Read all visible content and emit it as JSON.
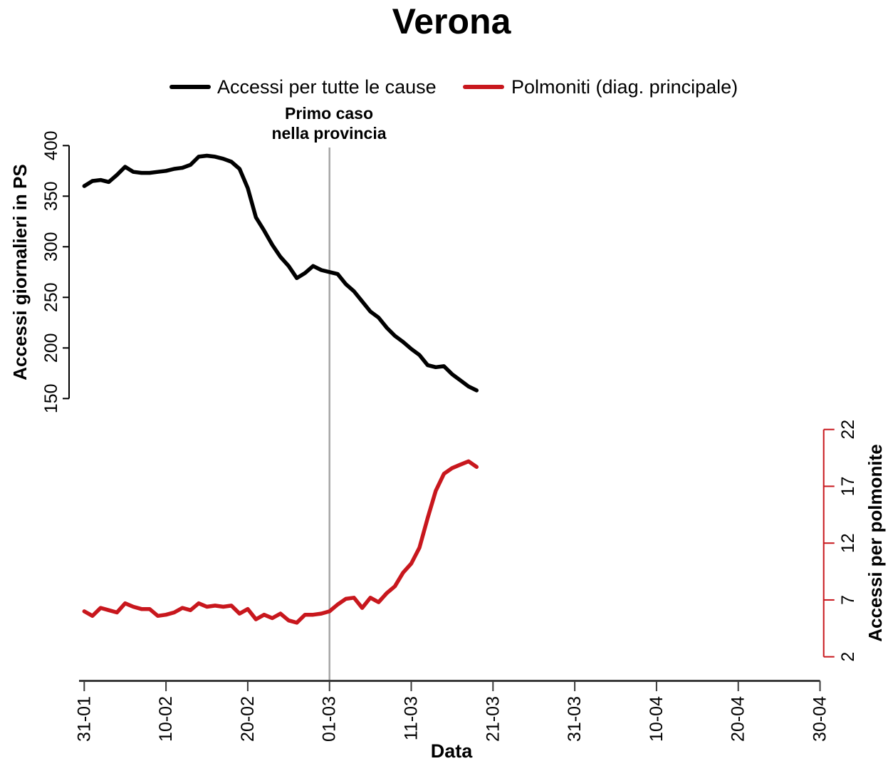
{
  "page": {
    "title": "Verona"
  },
  "colors": {
    "black": "#000000",
    "red": "#C8171D",
    "gray": "#A6A6A6",
    "axis_dark": "#3a3a3a",
    "tick_text": "#111111"
  },
  "legend": {
    "items": [
      {
        "label": "Accessi per tutte le cause"
      },
      {
        "label": "Polmoniti (diag. principale)"
      }
    ]
  },
  "annotation": {
    "lines": [
      "Primo caso",
      "nella provincia"
    ],
    "date": "01-03"
  },
  "chart_data": {
    "type": "line",
    "title": "Verona",
    "xlabel": "Data",
    "ylabel_left": "Accessi giornalieri in PS",
    "ylabel_right": "Accessi per polmonite",
    "grid": false,
    "legend_position": "top-center",
    "ylim_left": [
      150,
      400
    ],
    "ylim_right": [
      2,
      22
    ],
    "y_left_ticks": [
      150,
      200,
      250,
      300,
      350,
      400
    ],
    "y_right_ticks": [
      2,
      7,
      12,
      17,
      22
    ],
    "x_ticks": [
      {
        "label": "31-01",
        "day": 0
      },
      {
        "label": "10-02",
        "day": 10
      },
      {
        "label": "20-02",
        "day": 20
      },
      {
        "label": "01-03",
        "day": 30
      },
      {
        "label": "11-03",
        "day": 40
      },
      {
        "label": "21-03",
        "day": 50
      },
      {
        "label": "31-03",
        "day": 60
      },
      {
        "label": "10-04",
        "day": 70
      },
      {
        "label": "20-04",
        "day": 80
      },
      {
        "label": "30-04",
        "day": 90
      }
    ],
    "xlim_days": [
      0,
      90
    ],
    "annotation_day": 30,
    "x_dates": [
      "31-01",
      "01-02",
      "02-02",
      "03-02",
      "04-02",
      "05-02",
      "06-02",
      "07-02",
      "08-02",
      "09-02",
      "10-02",
      "11-02",
      "12-02",
      "13-02",
      "14-02",
      "15-02",
      "16-02",
      "17-02",
      "18-02",
      "19-02",
      "20-02",
      "21-02",
      "22-02",
      "23-02",
      "24-02",
      "25-02",
      "26-02",
      "27-02",
      "28-02",
      "29-02",
      "01-03",
      "02-03",
      "03-03",
      "04-03",
      "05-03",
      "06-03",
      "07-03",
      "08-03",
      "09-03",
      "10-03",
      "11-03",
      "12-03",
      "13-03",
      "14-03",
      "15-03",
      "16-03",
      "17-03",
      "18-03",
      "19-03"
    ],
    "series": [
      {
        "name": "Accessi per tutte le cause",
        "axis": "left",
        "color": "#000000",
        "values": [
          360,
          365,
          366,
          364,
          371,
          379,
          374,
          373,
          373,
          374,
          375,
          377,
          378,
          381,
          389,
          390,
          389,
          387,
          384,
          377,
          358,
          329,
          316,
          302,
          290,
          281,
          269,
          274,
          281,
          277,
          275,
          273,
          263,
          256,
          246,
          236,
          230,
          220,
          212,
          206,
          199,
          193,
          183,
          181,
          182,
          174,
          168,
          162,
          158
        ]
      },
      {
        "name": "Polmoniti (diag. principale)",
        "axis": "right",
        "color": "#C8171D",
        "values": [
          6.0,
          5.6,
          6.3,
          6.1,
          5.9,
          6.7,
          6.4,
          6.2,
          6.2,
          5.6,
          5.7,
          5.9,
          6.3,
          6.1,
          6.7,
          6.4,
          6.5,
          6.4,
          6.5,
          5.8,
          6.2,
          5.3,
          5.7,
          5.4,
          5.8,
          5.2,
          5.0,
          5.7,
          5.7,
          5.8,
          6.0,
          6.6,
          7.1,
          7.2,
          6.3,
          7.2,
          6.8,
          7.6,
          8.2,
          9.4,
          10.2,
          11.6,
          14.2,
          16.6,
          18.1,
          18.6,
          18.9,
          19.2,
          18.7
        ]
      }
    ]
  }
}
